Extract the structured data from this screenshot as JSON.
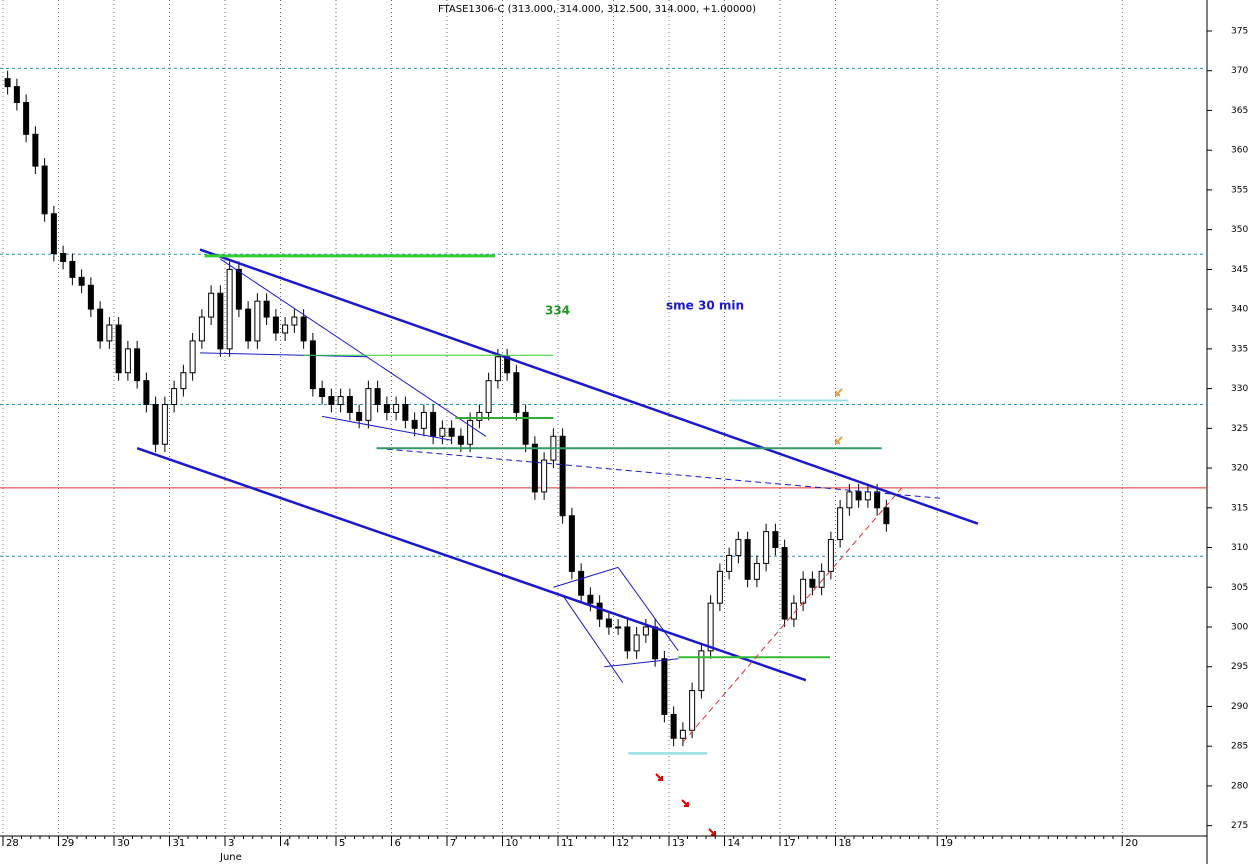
{
  "chart_data": {
    "type": "candlestick",
    "title": "FTASE1306-C (313.000, 314.000, 312.500, 314.000, +1.00000)",
    "month_label": "June",
    "categories": [
      "28",
      null,
      null,
      null,
      null,
      null,
      "29",
      null,
      null,
      null,
      null,
      null,
      "30",
      null,
      null,
      null,
      null,
      null,
      "31",
      null,
      null,
      null,
      null,
      null,
      "3",
      null,
      null,
      null,
      null,
      null,
      "4",
      null,
      null,
      null,
      null,
      null,
      "5",
      null,
      null,
      null,
      null,
      null,
      "6",
      null,
      null,
      null,
      null,
      null,
      "7",
      null,
      null,
      null,
      null,
      null,
      "10",
      null,
      null,
      null,
      null,
      null,
      "11",
      null,
      null,
      null,
      null,
      null,
      "12",
      null,
      null,
      null,
      null,
      null,
      "13",
      null,
      null,
      null,
      null,
      null,
      "14",
      null,
      null,
      null,
      null,
      null,
      "17",
      null,
      null,
      null,
      null,
      null,
      "18",
      null,
      null,
      null,
      null,
      null,
      null,
      null,
      null,
      null,
      null,
      "19",
      null,
      null,
      null,
      null,
      null,
      null,
      null,
      null,
      null,
      null,
      null,
      null,
      null,
      null,
      null,
      null,
      null,
      null,
      null,
      "20"
    ],
    "open": [
      369,
      368,
      366,
      362,
      358,
      352,
      347,
      346,
      344,
      343,
      340,
      336,
      338,
      332,
      335,
      331,
      328,
      323,
      328,
      330,
      332,
      336,
      339,
      342,
      335,
      345,
      340,
      336,
      341,
      339,
      337,
      338,
      339,
      336,
      330,
      329,
      328,
      329,
      327,
      326,
      330,
      328,
      327,
      328,
      326,
      325,
      327,
      324,
      325,
      324,
      323,
      326,
      327,
      331,
      334,
      332,
      327,
      323,
      317,
      321,
      324,
      314,
      307,
      304,
      303,
      301,
      300,
      300,
      297,
      299,
      300,
      296,
      289,
      286,
      287,
      292,
      297,
      303,
      307,
      309,
      311,
      306,
      308,
      312,
      310,
      301,
      303,
      306,
      305,
      307,
      311,
      315,
      317,
      316,
      317,
      315,
      null,
      null,
      null,
      null,
      null,
      null,
      null,
      null,
      null,
      null,
      null,
      null,
      null,
      null,
      null,
      null,
      null,
      null,
      null,
      null,
      null,
      null,
      null,
      null,
      null,
      null
    ],
    "high": [
      370,
      369,
      367,
      363,
      359,
      353,
      348,
      347,
      345,
      344,
      341,
      339,
      339,
      336,
      336,
      332,
      329,
      329,
      331,
      333,
      337,
      340,
      343,
      343,
      346,
      346,
      341,
      342,
      342,
      340,
      339,
      340,
      340,
      337,
      331,
      330,
      330,
      330,
      328,
      331,
      331,
      329,
      329,
      329,
      327,
      328,
      328,
      326,
      326,
      325,
      327,
      328,
      332,
      335,
      335,
      333,
      328,
      324,
      322,
      325,
      325,
      315,
      308,
      305,
      304,
      302,
      301,
      301,
      300,
      301,
      301,
      297,
      290,
      288,
      293,
      298,
      304,
      308,
      310,
      312,
      312,
      309,
      313,
      313,
      311,
      304,
      307,
      307,
      308,
      312,
      316,
      318,
      318,
      318,
      318,
      316,
      null,
      null,
      null,
      null,
      null,
      null,
      null,
      null,
      null,
      null,
      null,
      null,
      null,
      null,
      null,
      null,
      null,
      null,
      null,
      null,
      null,
      null,
      null,
      null,
      null,
      null
    ],
    "low": [
      367,
      365,
      361,
      357,
      351,
      346,
      345,
      343,
      342,
      339,
      335,
      335,
      331,
      331,
      330,
      327,
      322,
      322,
      327,
      329,
      331,
      335,
      338,
      334,
      334,
      339,
      335,
      335,
      338,
      336,
      336,
      337,
      335,
      329,
      328,
      327,
      327,
      326,
      325,
      325,
      327,
      326,
      326,
      325,
      324,
      324,
      323,
      323,
      323,
      322,
      322,
      325,
      326,
      330,
      331,
      326,
      322,
      316,
      316,
      320,
      313,
      306,
      303,
      302,
      300,
      299,
      299,
      296,
      296,
      298,
      295,
      288,
      285,
      285,
      286,
      291,
      296,
      302,
      306,
      308,
      305,
      305,
      307,
      309,
      300,
      300,
      302,
      304,
      304,
      306,
      310,
      314,
      315,
      315,
      314,
      312,
      null,
      null,
      null,
      null,
      null,
      null,
      null,
      null,
      null,
      null,
      null,
      null,
      null,
      null,
      null,
      null,
      null,
      null,
      null,
      null,
      null,
      null,
      null,
      null,
      null,
      null
    ],
    "close": [
      368,
      366,
      362,
      358,
      352,
      347,
      346,
      344,
      343,
      340,
      336,
      338,
      332,
      335,
      331,
      328,
      323,
      328,
      330,
      332,
      336,
      339,
      342,
      335,
      345,
      340,
      336,
      341,
      339,
      337,
      338,
      339,
      336,
      330,
      329,
      328,
      329,
      327,
      326,
      330,
      328,
      327,
      328,
      326,
      325,
      327,
      324,
      325,
      324,
      323,
      326,
      327,
      331,
      334,
      332,
      327,
      323,
      317,
      321,
      324,
      314,
      307,
      304,
      303,
      301,
      300,
      300,
      297,
      299,
      300,
      296,
      289,
      286,
      287,
      292,
      297,
      303,
      307,
      309,
      311,
      306,
      308,
      312,
      310,
      301,
      303,
      306,
      305,
      307,
      311,
      315,
      317,
      316,
      317,
      315,
      313,
      null,
      null,
      null,
      null,
      null,
      null,
      null,
      null,
      null,
      null,
      null,
      null,
      null,
      null,
      null,
      null,
      null,
      null,
      null,
      null,
      null,
      null,
      null,
      null,
      null,
      null
    ],
    "ylim": [
      273.7,
      378.9
    ],
    "yticks": [
      275,
      280,
      285,
      290,
      295,
      300,
      305,
      310,
      315,
      320,
      325,
      330,
      335,
      340,
      345,
      350,
      355,
      360,
      365,
      370,
      375
    ],
    "hlines": [
      {
        "value": 370.3,
        "color": "#2a8aa8",
        "dash": true
      },
      {
        "value": 346.9,
        "color": "#2a8aa8",
        "dash": true
      },
      {
        "value": 328,
        "color": "#2a8aa8",
        "dash": true
      },
      {
        "value": 308.9,
        "color": "#2a8aa8",
        "dash": true
      },
      {
        "value": 317.5,
        "color": "#e03030",
        "dash": false
      }
    ],
    "trendlines": [
      {
        "x": [
          21.3,
          105.4
        ],
        "y": [
          347.5,
          313
        ],
        "color": "#1a1acc",
        "width": 2.5,
        "dash": false
      },
      {
        "x": [
          14.5,
          86.8
        ],
        "y": [
          322.5,
          293.3
        ],
        "color": "#1a1acc",
        "width": 2.5,
        "dash": false
      },
      {
        "x": [
          23.5,
          52.2
        ],
        "y": [
          346.3,
          324
        ],
        "color": "#1a1acc",
        "width": 1,
        "dash": false
      },
      {
        "x": [
          21.3,
          39.4
        ],
        "y": [
          334.5,
          334
        ],
        "color": "#1a1acc",
        "width": 1,
        "dash": false
      },
      {
        "x": [
          34.5,
          48.5
        ],
        "y": [
          326.5,
          323.5
        ],
        "color": "#1a1acc",
        "width": 1,
        "dash": false
      },
      {
        "x": [
          40.4,
          101.3
        ],
        "y": [
          322.5,
          316.2
        ],
        "color": "#1a1acc",
        "width": 1,
        "dash": true
      },
      {
        "x": [
          21.8,
          53.2
        ],
        "y": [
          346.7,
          346.7
        ],
        "color": "#33cc33",
        "width": 3,
        "dash": false
      },
      {
        "x": [
          32.5,
          59.5
        ],
        "y": [
          334.2,
          334.2
        ],
        "color": "#33cc33",
        "width": 1,
        "dash": false
      },
      {
        "x": [
          48.9,
          59.5
        ],
        "y": [
          326.3,
          326.3
        ],
        "color": "#33aa33",
        "width": 2,
        "dash": false
      },
      {
        "x": [
          40.4,
          95
        ],
        "y": [
          322.5,
          322.5
        ],
        "color": "#339966",
        "width": 2,
        "dash": false
      },
      {
        "x": [
          78.5,
          91.4
        ],
        "y": [
          328.5,
          328.5
        ],
        "color": "#99e0e6",
        "width": 2,
        "dash": false
      },
      {
        "x": [
          67.6,
          76.1
        ],
        "y": [
          284.1,
          284.1
        ],
        "color": "#99e0e6",
        "width": 2.5,
        "dash": false
      },
      {
        "x": [
          73,
          89.4
        ],
        "y": [
          296.2,
          296.2
        ],
        "color": "#33bb33",
        "width": 2,
        "dash": false
      },
      {
        "x": [
          73.5,
          97.3
        ],
        "y": [
          285.5,
          317.7
        ],
        "color": "#e03030",
        "width": 1,
        "dash": true
      },
      {
        "x": [
          59.5,
          66.5
        ],
        "y": [
          305,
          307.5
        ],
        "color": "#1a1acc",
        "width": 1,
        "dash": false
      },
      {
        "x": [
          60.5,
          67
        ],
        "y": [
          304,
          293
        ],
        "color": "#1a1acc",
        "width": 1,
        "dash": false
      },
      {
        "x": [
          65,
          73
        ],
        "y": [
          295,
          296
        ],
        "color": "#1a1acc",
        "width": 1,
        "dash": false
      },
      {
        "x": [
          66.5,
          73
        ],
        "y": [
          307.5,
          297
        ],
        "color": "#1a1acc",
        "width": 1,
        "dash": false
      }
    ],
    "annotations": [
      {
        "text": "334",
        "color": "#229922"
      },
      {
        "text": "sme 30 min",
        "color": "#1a1acc"
      }
    ]
  }
}
